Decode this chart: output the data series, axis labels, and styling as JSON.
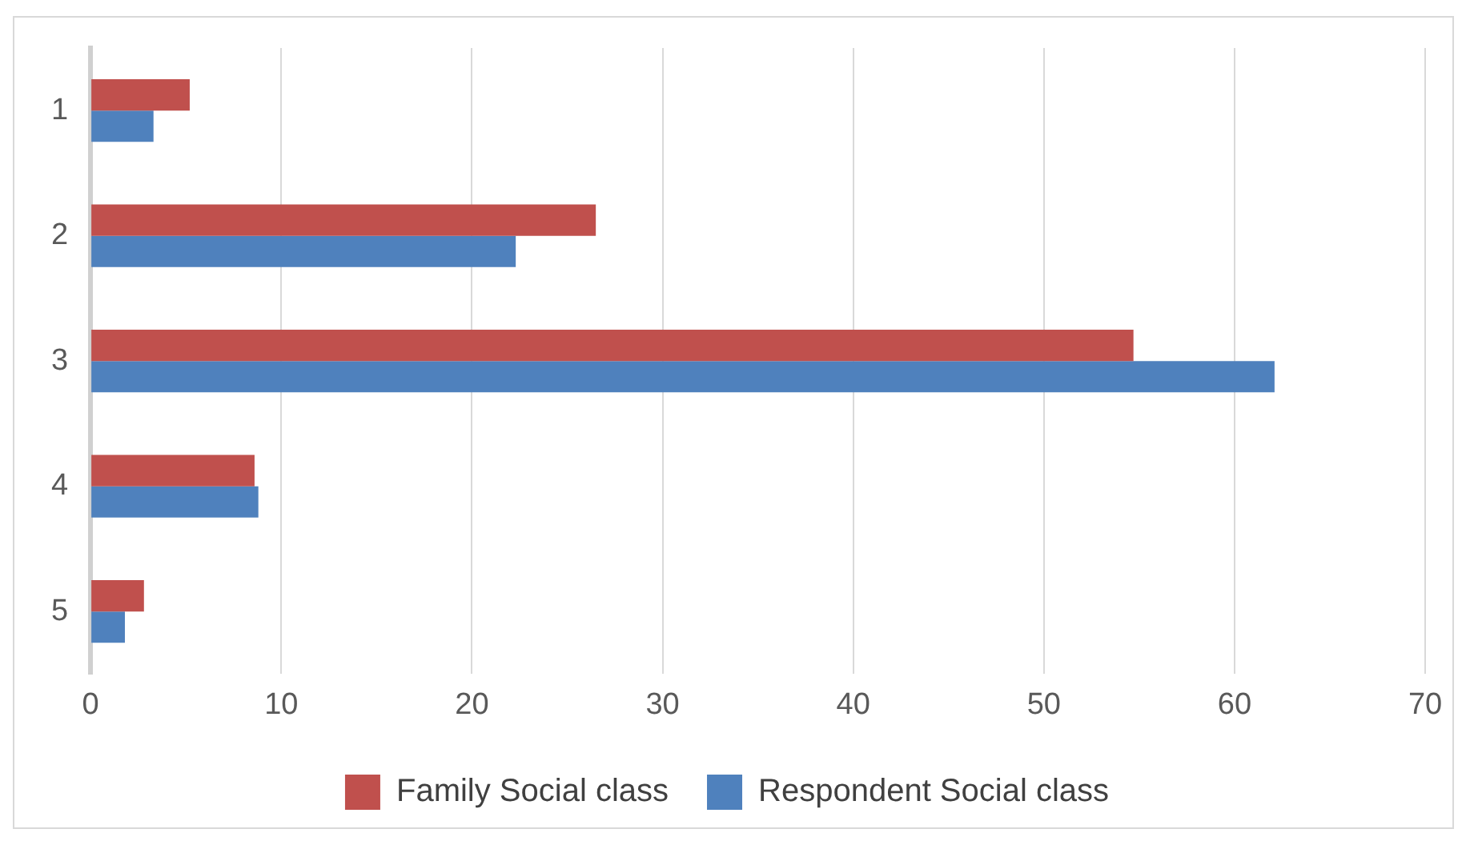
{
  "chart_data": {
    "type": "bar",
    "orientation": "horizontal",
    "categories": [
      "1",
      "2",
      "3",
      "4",
      "5"
    ],
    "series": [
      {
        "name": "Family Social class",
        "color": "#c0504d",
        "values": [
          5.2,
          26.5,
          54.7,
          8.6,
          2.8
        ]
      },
      {
        "name": "Respondent Social class",
        "color": "#4f81bd",
        "values": [
          3.3,
          22.3,
          62.1,
          8.8,
          1.8
        ]
      }
    ],
    "xlim": [
      0,
      70
    ],
    "xticks": [
      0,
      10,
      20,
      30,
      40,
      50,
      60,
      70
    ],
    "grid": "x",
    "legend": "bottom"
  }
}
